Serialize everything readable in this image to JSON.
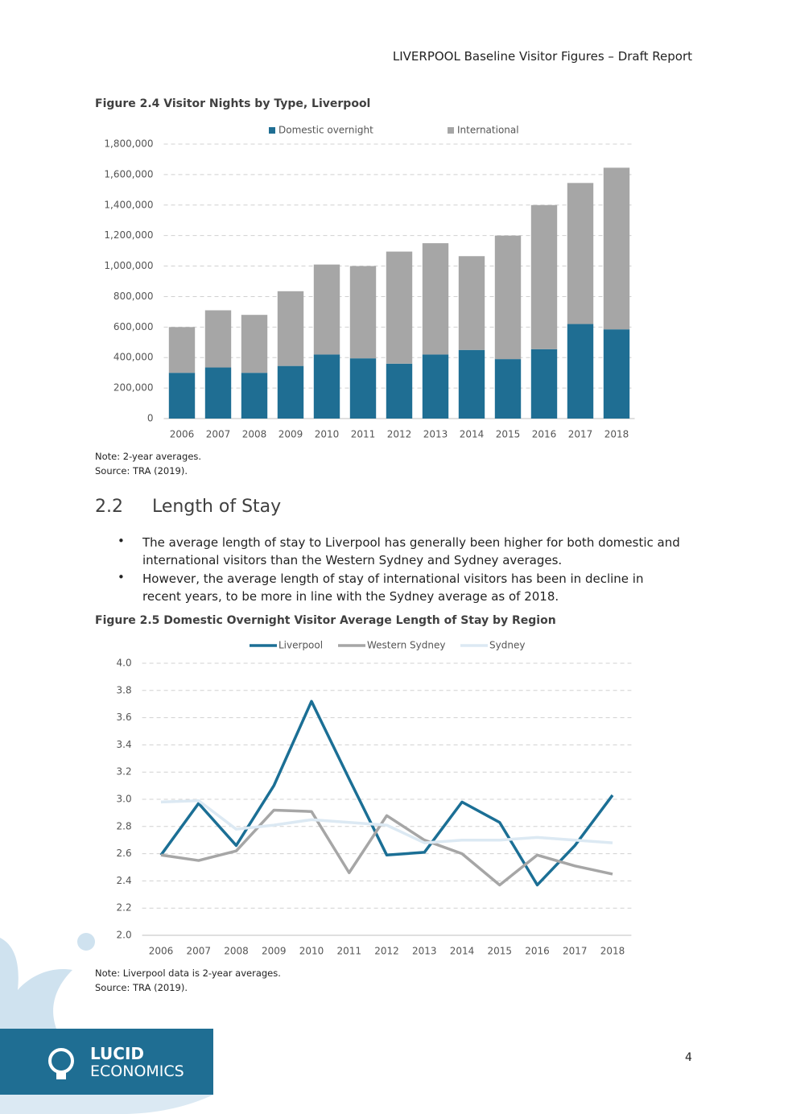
{
  "header": "LIVERPOOL Baseline Visitor Figures – Draft Report",
  "chart_data": [
    {
      "type": "stacked_bar",
      "title": "Figure 2.4 Visitor Nights by Type, Liverpool",
      "categories": [
        "2006",
        "2007",
        "2008",
        "2009",
        "2010",
        "2011",
        "2012",
        "2013",
        "2014",
        "2015",
        "2016",
        "2017",
        "2018"
      ],
      "series": [
        {
          "name": "Domestic overnight",
          "color": "#1f6e93",
          "values": [
            300000,
            335000,
            300000,
            345000,
            420000,
            395000,
            360000,
            420000,
            450000,
            390000,
            455000,
            620000,
            585000
          ]
        },
        {
          "name": "International",
          "color": "#a6a6a6",
          "values": [
            300000,
            375000,
            380000,
            490000,
            590000,
            605000,
            735000,
            730000,
            615000,
            810000,
            945000,
            925000,
            1060000
          ]
        }
      ],
      "ylim": [
        0,
        1800000
      ],
      "yticks": [
        0,
        {
          "value": 200000,
          "label": "200,000"
        },
        {
          "value": 400000,
          "label": "400,000"
        },
        {
          "value": 600000,
          "label": "600,000"
        },
        {
          "value": 800000,
          "label": "800,000"
        },
        {
          "value": 1000000,
          "label": "1,000,000"
        },
        {
          "value": 1200000,
          "label": "1,200,000"
        },
        {
          "value": 1400000,
          "label": "1,400,000"
        },
        {
          "value": 1600000,
          "label": "1,600,000"
        },
        {
          "value": 1800000,
          "label": "1,800,000"
        }
      ],
      "grid": true,
      "legend": "top",
      "notes": [
        "Note: 2-year averages.",
        "Source: TRA (2019)."
      ]
    },
    {
      "type": "line",
      "title": "Figure 2.5 Domestic Overnight Visitor Average Length of Stay by Region",
      "categories": [
        "2006",
        "2007",
        "2008",
        "2009",
        "2010",
        "2011",
        "2012",
        "2013",
        "2014",
        "2015",
        "2016",
        "2017",
        "2018"
      ],
      "series": [
        {
          "name": "Liverpool",
          "color": "#1b6f95",
          "values": [
            2.59,
            2.97,
            2.66,
            3.1,
            3.72,
            3.15,
            2.59,
            2.61,
            2.98,
            2.83,
            2.37,
            2.66,
            3.03
          ]
        },
        {
          "name": "Western Sydney",
          "color": "#a6a6a6",
          "values": [
            2.59,
            2.55,
            2.62,
            2.92,
            2.91,
            2.46,
            2.88,
            2.7,
            2.6,
            2.37,
            2.59,
            2.51,
            2.45
          ]
        },
        {
          "name": "Sydney",
          "color": "#dce9f3",
          "values": [
            2.98,
            2.99,
            2.78,
            2.81,
            2.85,
            2.83,
            2.81,
            2.68,
            2.7,
            2.7,
            2.72,
            2.7,
            2.68
          ]
        }
      ],
      "ylim": [
        2.0,
        4.0
      ],
      "yticks": [
        {
          "value": 2.0,
          "label": "2.0"
        },
        2.2,
        2.4,
        2.6,
        2.8,
        {
          "value": 3.0,
          "label": "3.0"
        },
        3.2,
        3.4,
        3.6,
        3.8,
        {
          "value": 4.0,
          "label": "4.0"
        }
      ],
      "grid": true,
      "legend": "top",
      "notes": [
        "Note: Liverpool data is 2-year averages.",
        "Source: TRA (2019)."
      ]
    }
  ],
  "section": {
    "number": "2.2",
    "title": "Length of Stay"
  },
  "bullets": [
    "The average length of stay to Liverpool has generally been higher for both domestic and international visitors than the Western Sydney and Sydney averages.",
    "However, the average length of stay of international visitors has been in decline in recent years, to be more in line with the Sydney average as of 2018."
  ],
  "footer": {
    "logo_top": "LUCID",
    "logo_bottom": "ECONOMICS",
    "page": "4"
  }
}
